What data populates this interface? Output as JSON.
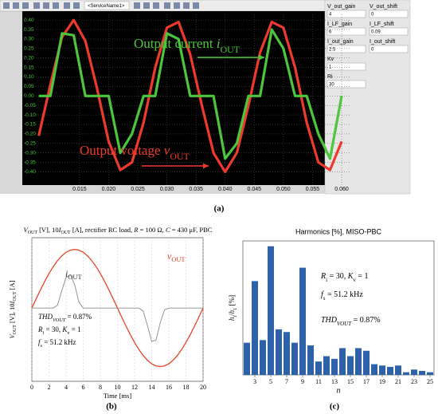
{
  "toolbar": {
    "service": "<ServiceName1>"
  },
  "controls": [
    {
      "label": "V_out_gain",
      "value": 4
    },
    {
      "label": "V_out_shift",
      "value": 0
    },
    {
      "label": "I_LF_gain",
      "value": 6
    },
    {
      "label": "I_LF_shift",
      "value": 0.09
    },
    {
      "label": "I_out_gain",
      "value": 2.5
    },
    {
      "label": "I_out_shift",
      "value": 0
    },
    {
      "label": "Kv",
      "value": 1
    },
    {
      "label": "Ri",
      "value": 30
    }
  ],
  "panel_labels": [
    "(a)",
    "(b)",
    "(c)"
  ],
  "chart_data": [
    {
      "type": "line",
      "x": [
        0.008,
        0.01,
        0.012,
        0.014,
        0.016,
        0.018,
        0.02,
        0.022,
        0.024,
        0.026,
        0.028,
        0.03,
        0.032,
        0.034,
        0.036,
        0.038,
        0.04,
        0.042,
        0.044,
        0.046,
        0.048,
        0.05,
        0.052,
        0.054,
        0.056,
        0.058,
        0.06
      ],
      "xlim": [
        0.0075,
        0.0615
      ],
      "ylim": [
        -0.44,
        0.43
      ],
      "xticks": [
        0.015,
        {
          "value": 0.02,
          "label": "0.020"
        },
        0.025,
        {
          "value": 0.03,
          "label": "0.030"
        },
        0.035,
        {
          "value": 0.04,
          "label": "0.040"
        },
        0.045,
        {
          "value": 0.05,
          "label": "0.050"
        },
        0.055,
        {
          "value": 0.06,
          "label": "0.060"
        }
      ],
      "yticks": [
        {
          "value": 0.4,
          "label": "0.40"
        },
        0.35,
        {
          "value": 0.3,
          "label": "0.30"
        },
        0.25,
        {
          "value": 0.2,
          "label": "0.20"
        },
        0.15,
        {
          "value": 0.1,
          "label": "0.10"
        },
        0.05,
        {
          "value": 0,
          "label": "0.00"
        },
        -0.05,
        {
          "value": -0.1,
          "label": "-0.10"
        },
        -0.15,
        {
          "value": -0.2,
          "label": "-0.20"
        },
        -0.25,
        {
          "value": -0.3,
          "label": "-0.30"
        },
        -0.35,
        {
          "value": -0.4,
          "label": "-0.40"
        }
      ],
      "grid": true,
      "series": [
        {
          "color": "#ee3a2c",
          "values": [
            -0.21,
            0.06,
            0.31,
            0.4,
            0.29,
            0.04,
            -0.24,
            -0.39,
            -0.35,
            -0.14,
            0.15,
            0.36,
            0.39,
            0.22,
            -0.05,
            -0.3,
            -0.4,
            -0.3,
            -0.05,
            0.23,
            0.39,
            0.36,
            0.15,
            -0.14,
            -0.35,
            -0.39,
            -0.24
          ]
        },
        {
          "color": "#4cc63a",
          "values": [
            0,
            0,
            0.33,
            0.32,
            0,
            0,
            0,
            -0.3,
            -0.2,
            0,
            0,
            0.33,
            0.3,
            0,
            0,
            0,
            -0.33,
            -0.25,
            0,
            0,
            0.35,
            0.25,
            0,
            0,
            -0.2,
            -0.33,
            0
          ]
        }
      ],
      "annotations": [
        [
          "Output current ",
          "i",
          "OUT"
        ],
        [
          "Output voltage ",
          "v",
          "OUT"
        ]
      ]
    },
    {
      "type": "line",
      "title": [
        "V",
        "OUT",
        " [V], 10",
        "I",
        "OUT",
        " [A], rectifier RC load, ",
        "R",
        " = 100 Ω, ",
        "C",
        " = 430 μF, PBC"
      ],
      "x": [
        0,
        0.5,
        1,
        1.5,
        2,
        2.5,
        3,
        3.5,
        4,
        4.5,
        5,
        5.5,
        6,
        6.5,
        7,
        7.5,
        8,
        8.5,
        9,
        9.5,
        10,
        10.5,
        11,
        11.5,
        12,
        12.5,
        13,
        13.5,
        14,
        14.5,
        15,
        15.5,
        16,
        16.5,
        17,
        17.5,
        18,
        18.5,
        19,
        19.5,
        20
      ],
      "xlim": [
        0,
        20
      ],
      "ylim": [
        -125,
        120
      ],
      "xticks": [
        0,
        2,
        4,
        6,
        8,
        10,
        12,
        14,
        16,
        18,
        20
      ],
      "xlabel": "Time [ms]",
      "ylabel": [
        "V",
        "OUT",
        " [V], 10",
        "I",
        "OUT",
        " [A]"
      ],
      "grid": true,
      "series": [
        {
          "name": [
            "v",
            "OUT"
          ],
          "color": "#e8452a",
          "values": [
            0,
            15.6,
            30.9,
            45.4,
            58.8,
            70.7,
            80.9,
            89.1,
            95.1,
            98.8,
            100,
            98.8,
            95.1,
            89.1,
            80.9,
            70.7,
            58.8,
            45.4,
            30.9,
            15.6,
            0,
            -15.6,
            -30.9,
            -45.4,
            -58.8,
            -70.7,
            -80.9,
            -89.1,
            -95.1,
            -98.8,
            -100,
            -98.8,
            -95.1,
            -89.1,
            -80.9,
            -70.7,
            -58.8,
            -45.4,
            -30.9,
            -15.6,
            0
          ]
        },
        {
          "name": [
            "i",
            "OUT"
          ],
          "color": "#8a8a8a",
          "values": [
            0,
            0,
            0,
            0,
            0,
            0,
            5,
            30,
            52,
            57,
            40,
            10,
            0,
            0,
            0,
            0,
            0,
            0,
            0,
            0,
            0,
            0,
            0,
            0,
            0,
            0,
            -5,
            -30,
            -57,
            -55,
            -25,
            -3,
            0,
            0,
            0,
            0,
            0,
            0,
            0,
            0,
            0
          ]
        }
      ],
      "annotations": [
        [
          "THD",
          "VOUT",
          " = 0.87%"
        ],
        [
          "R",
          "i",
          " = 30, ",
          "K",
          "v",
          " = 1"
        ],
        [
          "f",
          "s",
          " = 51.2 kHz"
        ]
      ]
    },
    {
      "type": "bar",
      "title": "Harmonics [%], MISO-PBC",
      "x": [
        2,
        3,
        4,
        5,
        6,
        7,
        8,
        9,
        10,
        11,
        12,
        13,
        14,
        15,
        16,
        17,
        18,
        19,
        20,
        21,
        22,
        23,
        24,
        25
      ],
      "values": [
        0.12,
        0.35,
        0.13,
        0.48,
        0.17,
        0.16,
        0.12,
        0.4,
        0.11,
        0.05,
        0.07,
        0.06,
        0.1,
        0.07,
        0.1,
        0.09,
        0.04,
        0.035,
        0.03,
        0.035,
        0.01,
        0.02,
        0.015,
        0.01
      ],
      "color": "#2e62a8",
      "xlim": [
        1.5,
        25.5
      ],
      "ylim": [
        0,
        0.5
      ],
      "xticks": [
        3,
        5,
        7,
        9,
        11,
        13,
        15,
        17,
        19,
        21,
        23,
        25
      ],
      "xlabel": "n",
      "ylabel": [
        "h",
        "i",
        "/",
        "h",
        "1",
        " [%]"
      ],
      "annotations": [
        [
          "R",
          "i",
          " = 30, ",
          "K",
          "v",
          " = 1"
        ],
        [
          "f",
          "s",
          " = 51.2 kHz"
        ],
        [
          "THD",
          "VOUT",
          " = 0.87%"
        ]
      ]
    }
  ]
}
